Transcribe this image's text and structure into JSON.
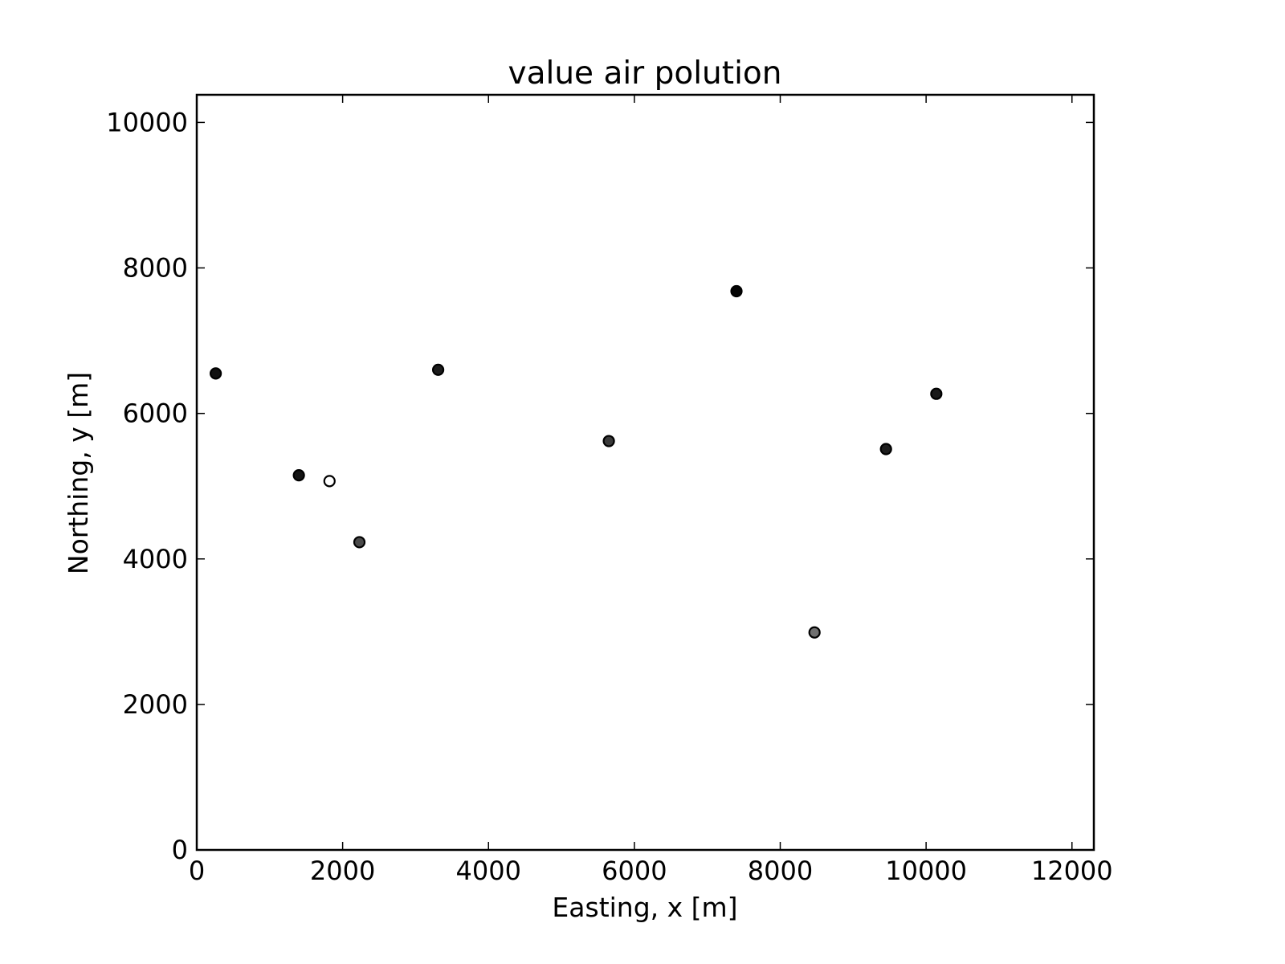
{
  "chart_data": {
    "type": "scatter",
    "title": "value air polution",
    "xlabel": "Easting, x [m]",
    "ylabel": "Northing, y [m]",
    "xlim": [
      0,
      12300
    ],
    "ylim": [
      0,
      10380
    ],
    "xticks": [
      0,
      2000,
      4000,
      6000,
      8000,
      10000,
      12000
    ],
    "yticks": [
      0,
      2000,
      4000,
      6000,
      8000,
      10000
    ],
    "grid": false,
    "points": [
      {
        "x": 260,
        "y": 6550,
        "color": "#111111"
      },
      {
        "x": 1400,
        "y": 5150,
        "color": "#141414"
      },
      {
        "x": 1820,
        "y": 5070,
        "color": "#ffffff"
      },
      {
        "x": 2230,
        "y": 4230,
        "color": "#4a4a4a"
      },
      {
        "x": 3310,
        "y": 6600,
        "color": "#1c1c1c"
      },
      {
        "x": 5650,
        "y": 5620,
        "color": "#3a3a3a"
      },
      {
        "x": 7400,
        "y": 7680,
        "color": "#050505"
      },
      {
        "x": 8470,
        "y": 2990,
        "color": "#707070"
      },
      {
        "x": 9450,
        "y": 5510,
        "color": "#1e1e1e"
      },
      {
        "x": 10140,
        "y": 6270,
        "color": "#1a1a1a"
      }
    ]
  }
}
